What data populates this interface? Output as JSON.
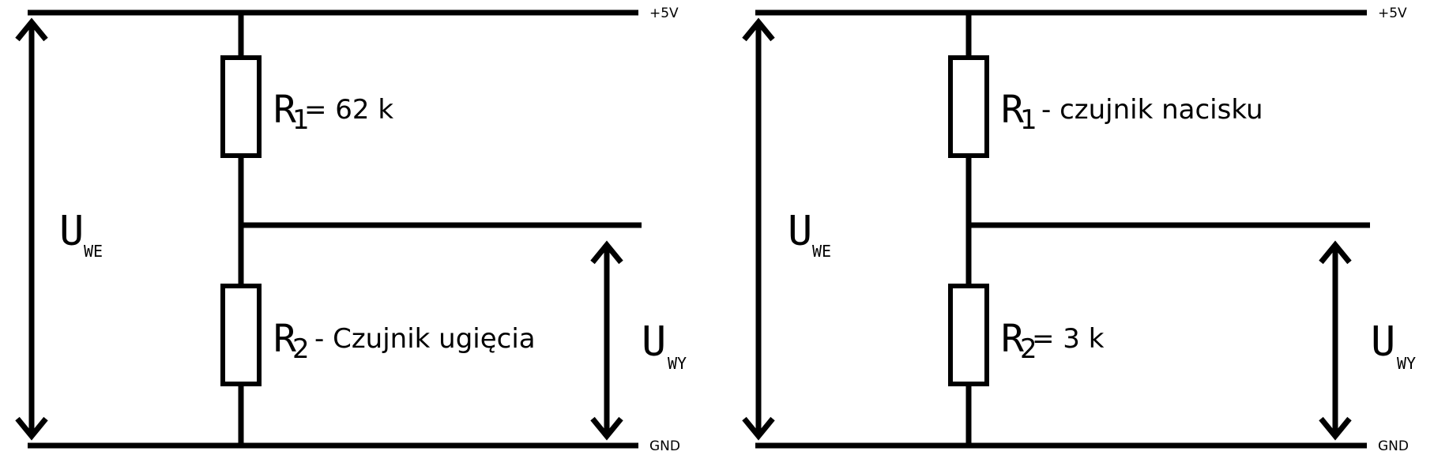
{
  "diagrams": [
    {
      "rail_top": "+5V",
      "rail_bottom": "GND",
      "r1": {
        "symbol": "R",
        "index": "1",
        "text": "= 62 k"
      },
      "r2": {
        "symbol": "R",
        "index": "2",
        "text": "- Czujnik ugięcia"
      },
      "u_in": {
        "symbol": "U",
        "sub": "WE"
      },
      "u_out": {
        "symbol": "U",
        "sub": "WY"
      }
    },
    {
      "rail_top": "+5V",
      "rail_bottom": "GND",
      "r1": {
        "symbol": "R",
        "index": "1",
        "text": "- czujnik nacisku"
      },
      "r2": {
        "symbol": "R",
        "index": "2",
        "text": "= 3 k"
      },
      "u_in": {
        "symbol": "U",
        "sub": "WE"
      },
      "u_out": {
        "symbol": "U",
        "sub": "WY"
      }
    }
  ]
}
